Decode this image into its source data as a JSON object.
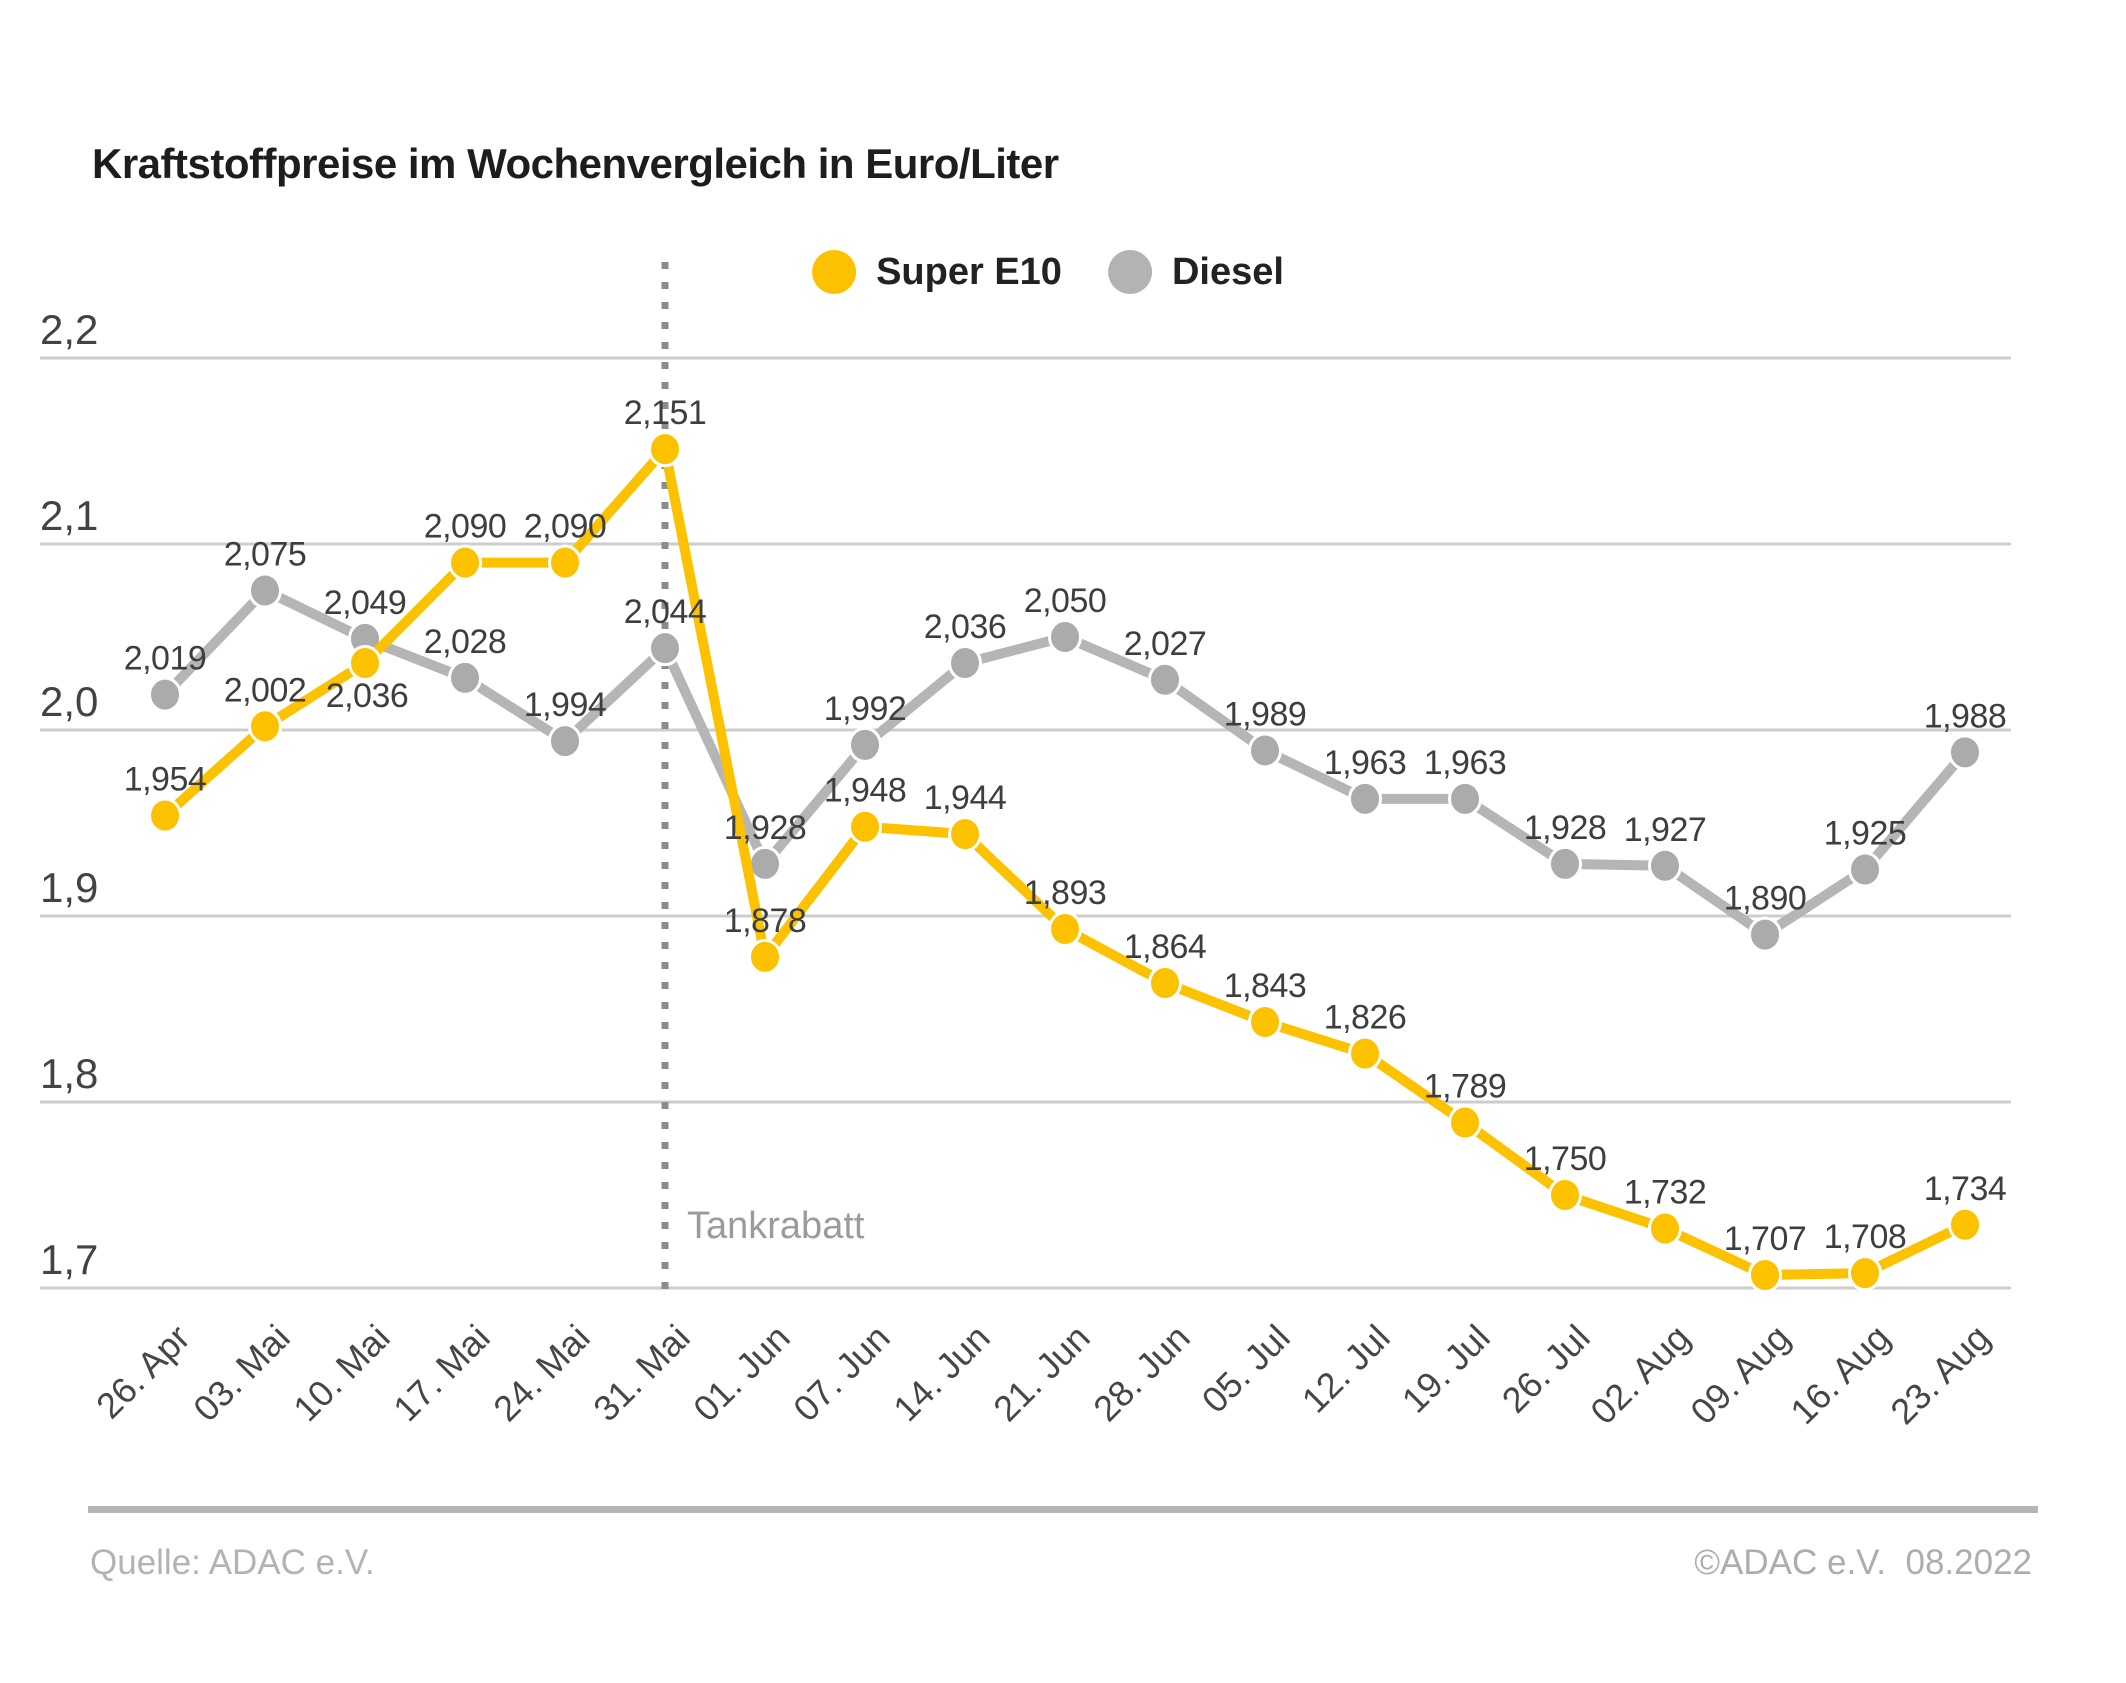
{
  "header": {
    "title": "Kraftstoffpreise im Wochenvergleich in Euro/Liter"
  },
  "legend": [
    {
      "label": "Super E10",
      "color": "#FCC200"
    },
    {
      "label": "Diesel",
      "color": "#B3B3B3"
    }
  ],
  "chart_data": {
    "type": "line",
    "title": "Kraftstoffpreise im Wochenvergleich in Euro/Liter",
    "categories": [
      "26. Apr",
      "03. Mai",
      "10. Mai",
      "17. Mai",
      "24. Mai",
      "31. Mai",
      "01. Jun",
      "07. Jun",
      "14. Jun",
      "21. Jun",
      "28. Jun",
      "05. Jul",
      "12. Jul",
      "19. Jul",
      "26. Jul",
      "02. Aug",
      "09. Aug",
      "16. Aug",
      "23. Aug"
    ],
    "series": [
      {
        "name": "Super E10",
        "color": "#FCC200",
        "dot_color": "#FCC200",
        "values": [
          1.954,
          2.002,
          2.036,
          2.09,
          2.09,
          2.151,
          1.878,
          1.948,
          1.944,
          1.893,
          1.864,
          1.843,
          1.826,
          1.789,
          1.75,
          1.732,
          1.707,
          1.708,
          1.734
        ]
      },
      {
        "name": "Diesel",
        "color": "#B5B5B5",
        "dot_color": "#ABABAB",
        "values": [
          2.019,
          2.075,
          2.049,
          2.028,
          1.994,
          2.044,
          1.928,
          1.992,
          2.036,
          2.05,
          2.027,
          1.989,
          1.963,
          1.963,
          1.928,
          1.927,
          1.89,
          1.925,
          1.988
        ]
      }
    ],
    "yticks": [
      "2,2",
      "2,1",
      "2,0",
      "1,9",
      "1,8",
      "1,7"
    ],
    "ytick_values": [
      2.2,
      2.1,
      2.0,
      1.9,
      1.8,
      1.7
    ],
    "ylim": [
      1.7,
      2.2
    ],
    "grid": "horizontal",
    "legend_position": "top-center",
    "annotation": {
      "label": "Tankrabatt",
      "at_category": "31. Mai"
    },
    "label_decimals": 3,
    "decimal_separator": ","
  },
  "footer": {
    "source": "Quelle: ADAC e.V.",
    "copyright": "©ADAC e.V.  08.2022"
  }
}
